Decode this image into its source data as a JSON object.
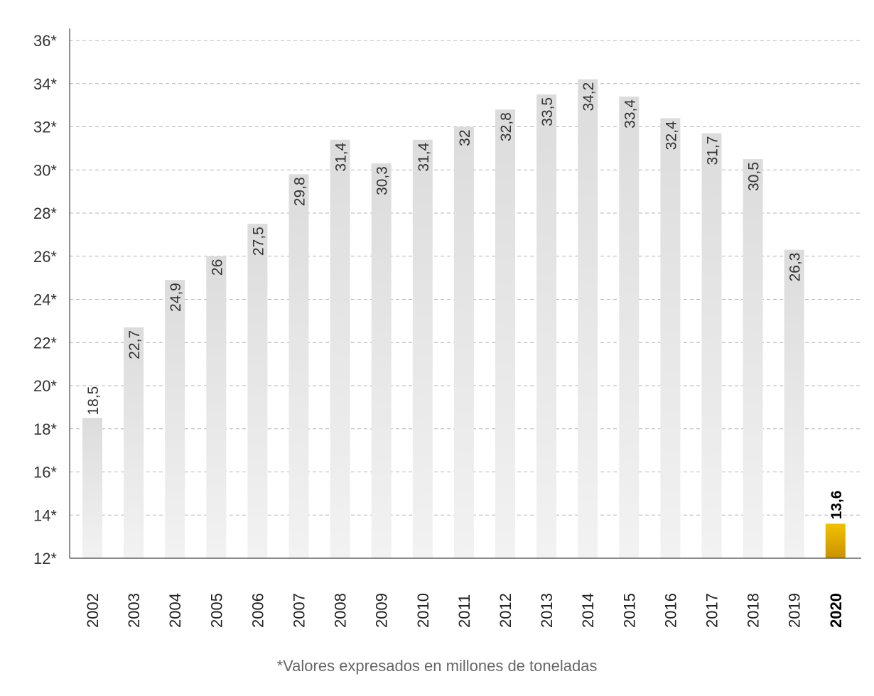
{
  "chart_data": {
    "type": "bar",
    "categories": [
      "2002",
      "2003",
      "2004",
      "2005",
      "2006",
      "2007",
      "2008",
      "2009",
      "2010",
      "2011",
      "2012",
      "2013",
      "2014",
      "2015",
      "2016",
      "2017",
      "2018",
      "2019",
      "2020"
    ],
    "values": [
      18.5,
      22.7,
      24.9,
      26,
      27.5,
      29.8,
      31.4,
      30.3,
      31.4,
      32,
      32.8,
      33.5,
      34.2,
      33.4,
      32.4,
      31.7,
      30.5,
      26.3,
      13.6
    ],
    "data_labels": [
      "18,5",
      "22,7",
      "24,9",
      "26",
      "27,5",
      "29,8",
      "31,4",
      "30,3",
      "31,4",
      "32",
      "32,8",
      "33,5",
      "34,2",
      "33,4",
      "32,4",
      "31,7",
      "30,5",
      "26,3",
      "13,6"
    ],
    "highlight_category": "2020",
    "yticks": [
      12,
      14,
      16,
      18,
      20,
      22,
      24,
      26,
      28,
      30,
      32,
      34,
      36
    ],
    "ytick_labels": [
      "12*",
      "14*",
      "16*",
      "18*",
      "20*",
      "22*",
      "24*",
      "26*",
      "28*",
      "30*",
      "32*",
      "34*",
      "36*"
    ],
    "ylim": [
      12,
      36
    ],
    "grid": true,
    "colors": {
      "bar": "#e6e6e6",
      "bar_highlight": "#e0a800",
      "grid": "#b5b5b5",
      "axis": "#444444"
    },
    "footnote": "*Valores expresados en millones de toneladas"
  }
}
